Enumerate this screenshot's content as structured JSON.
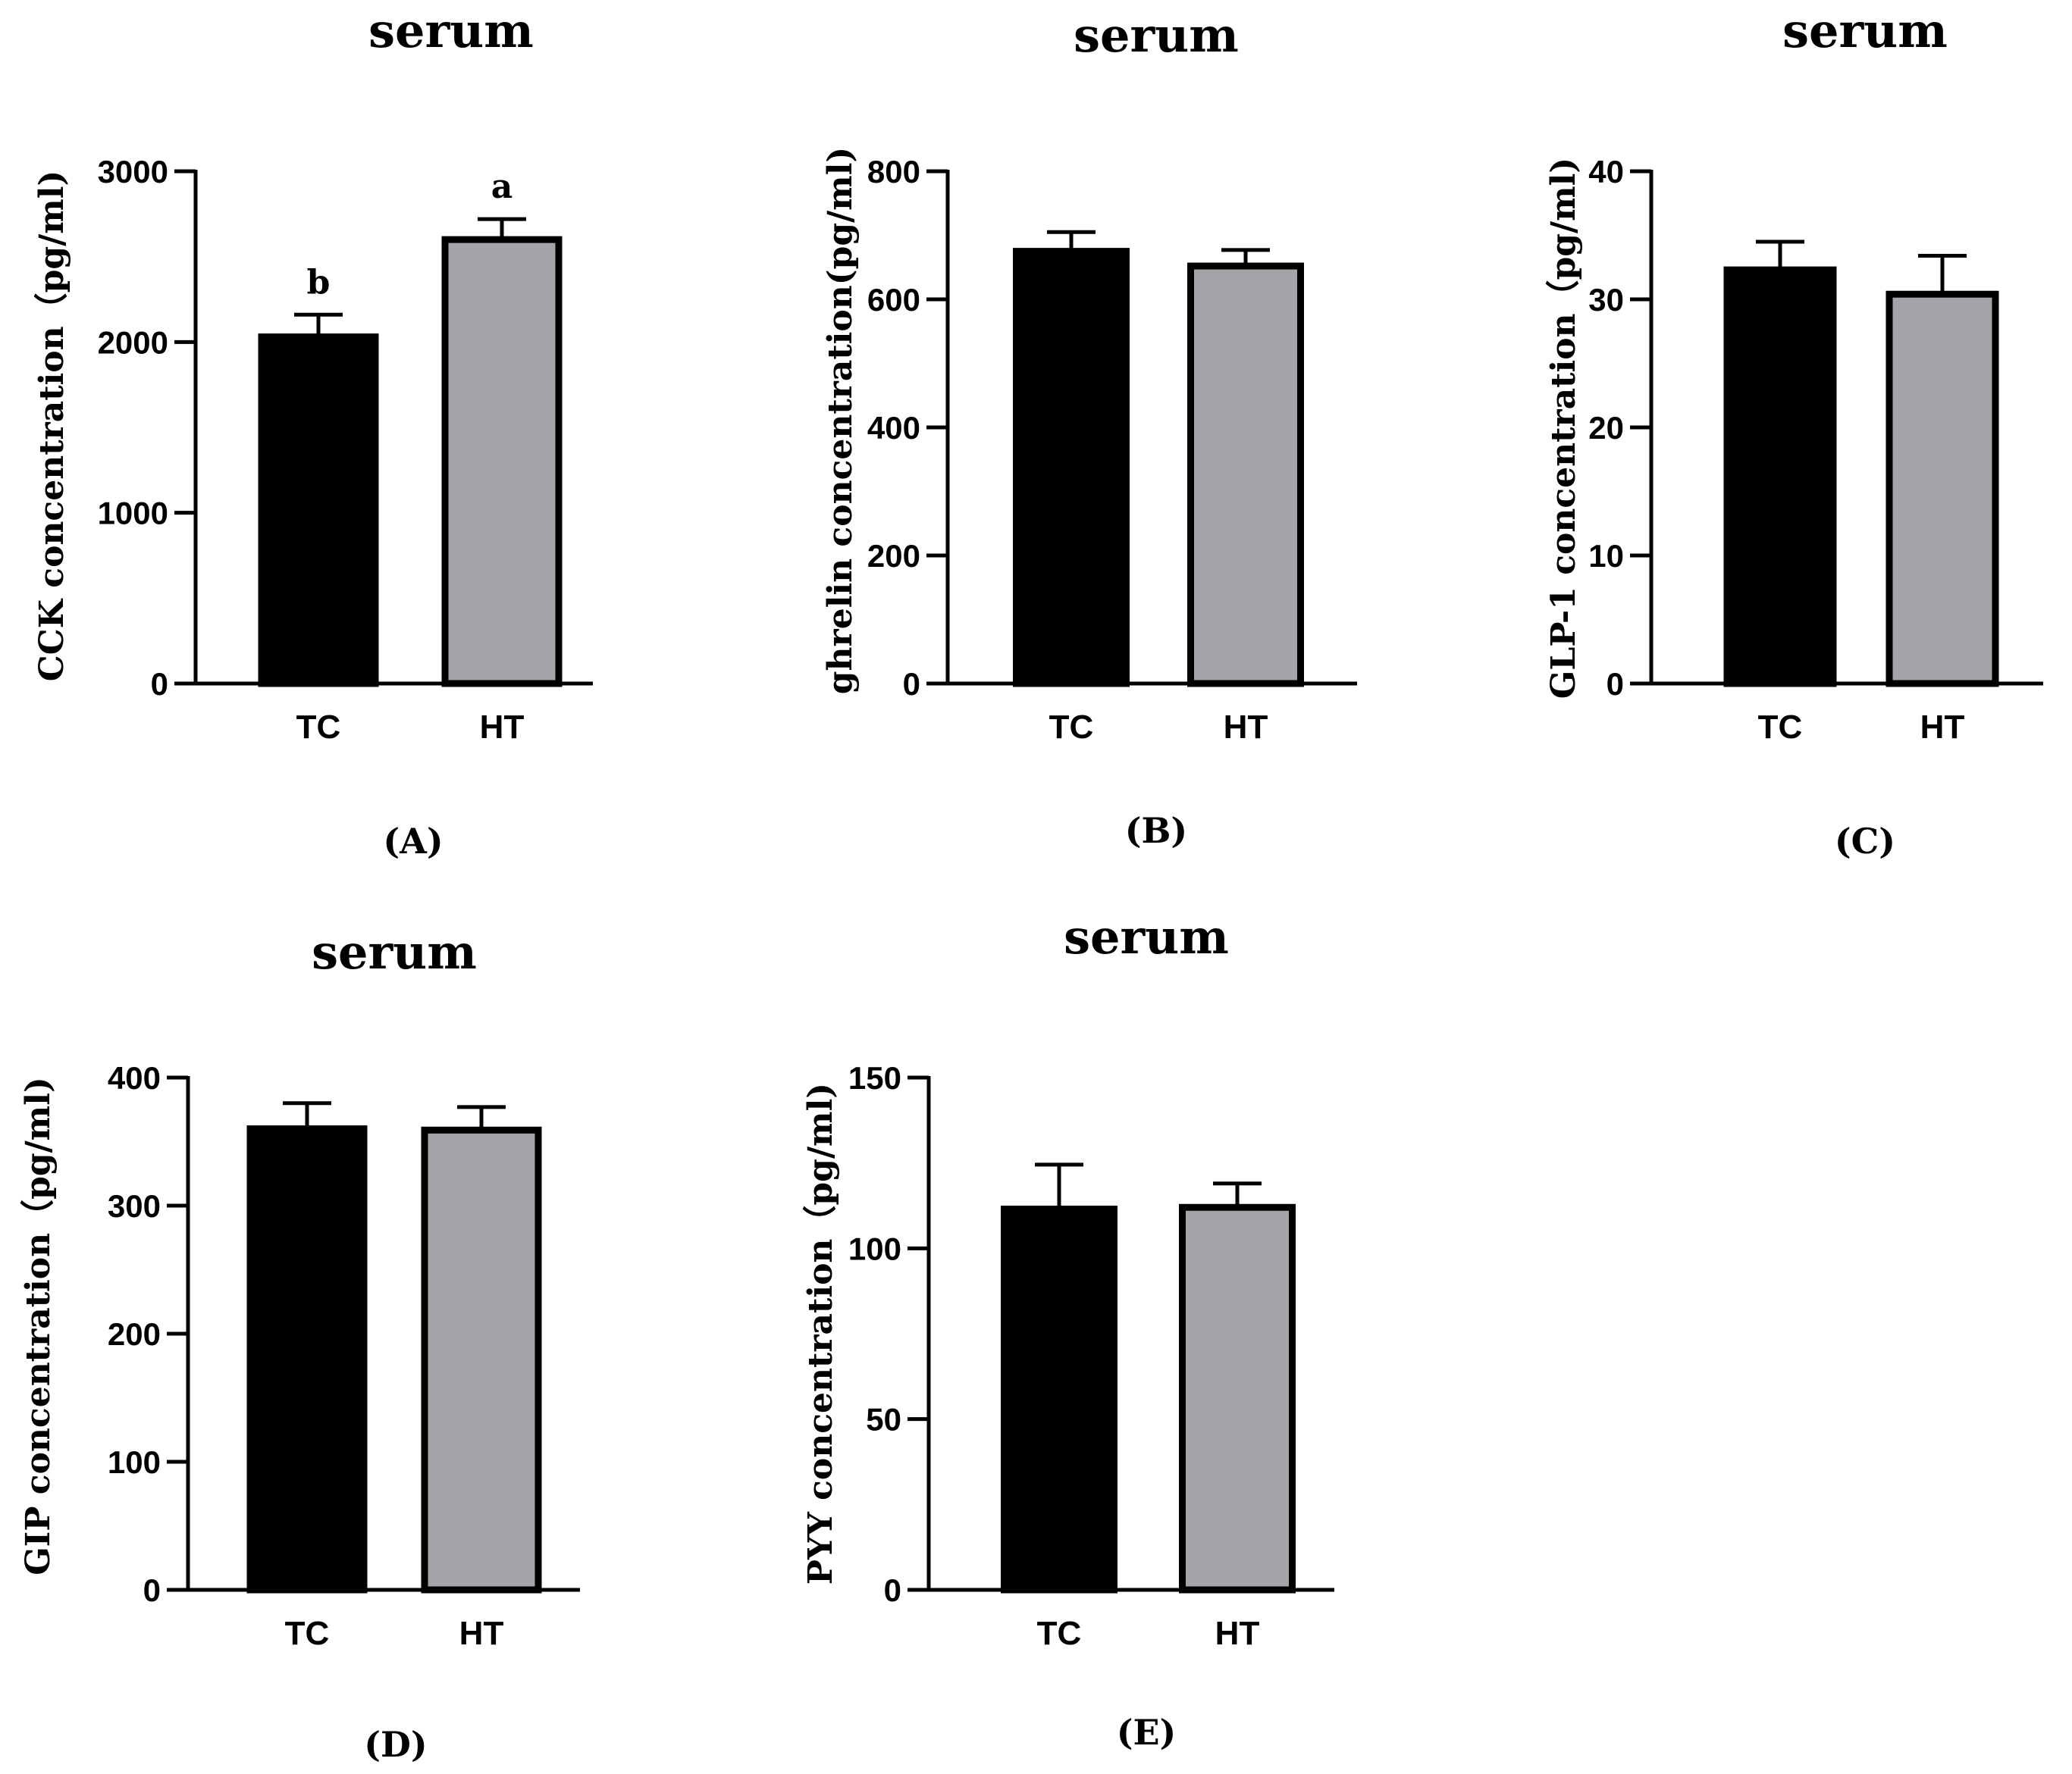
{
  "chart_data": [
    {
      "type": "bar",
      "title": "serum",
      "panel_label": "(A)",
      "ylabel": "CCK concentration（pg/ml)",
      "xlabel": "",
      "categories": [
        "TC",
        "HT"
      ],
      "values": [
        2030,
        2600
      ],
      "errors": [
        130,
        120
      ],
      "significance": [
        "b",
        "a"
      ],
      "ylim": [
        0,
        3000
      ],
      "yticks": [
        0,
        1000,
        2000,
        3000
      ],
      "ytick_labels": [
        "0",
        "1000",
        "2000",
        "3000"
      ],
      "colors": [
        "#000000",
        "#a3a3a8"
      ]
    },
    {
      "type": "bar",
      "title": "serum",
      "panel_label": "(B)",
      "ylabel": "ghrelin concentration(pg/ml)",
      "xlabel": "",
      "categories": [
        "TC",
        "HT"
      ],
      "values": [
        675,
        652
      ],
      "errors": [
        30,
        25
      ],
      "ylim": [
        0,
        800
      ],
      "yticks": [
        0,
        200,
        400,
        600,
        800
      ],
      "ytick_labels": [
        "0",
        "200",
        "400",
        "600",
        "800"
      ],
      "colors": [
        "#000000",
        "#a3a3a8"
      ]
    },
    {
      "type": "bar",
      "title": "serum",
      "panel_label": "(C)",
      "ylabel": "GLP-1 concentration（pg/ml)",
      "xlabel": "",
      "categories": [
        "TC",
        "HT"
      ],
      "values": [
        32.3,
        30.4
      ],
      "errors": [
        2.2,
        3.0
      ],
      "ylim": [
        0,
        40
      ],
      "yticks": [
        0,
        10,
        20,
        30,
        40
      ],
      "ytick_labels": [
        "0",
        "10",
        "20",
        "30",
        "40"
      ],
      "colors": [
        "#000000",
        "#a3a3a8"
      ]
    },
    {
      "type": "bar",
      "title": "serum",
      "panel_label": "(D)",
      "ylabel": "GIP concentration（pg/ml)",
      "xlabel": "",
      "categories": [
        "TC",
        "HT"
      ],
      "values": [
        360,
        359
      ],
      "errors": [
        20,
        18
      ],
      "ylim": [
        0,
        400
      ],
      "yticks": [
        0,
        100,
        200,
        300,
        400
      ],
      "ytick_labels": [
        "0",
        "100",
        "200",
        "300",
        "400"
      ],
      "colors": [
        "#000000",
        "#a3a3a8"
      ]
    },
    {
      "type": "bar",
      "title": "serum",
      "panel_label": "(E)",
      "ylabel": "PYY concentration（pg/ml)",
      "xlabel": "",
      "categories": [
        "TC",
        "HT"
      ],
      "values": [
        111.5,
        112
      ],
      "errors": [
        13,
        7
      ],
      "ylim": [
        0,
        150
      ],
      "yticks": [
        0,
        50,
        100,
        150
      ],
      "ytick_labels": [
        "0",
        "50",
        "100",
        "150"
      ],
      "colors": [
        "#000000",
        "#a3a3a8"
      ]
    }
  ]
}
